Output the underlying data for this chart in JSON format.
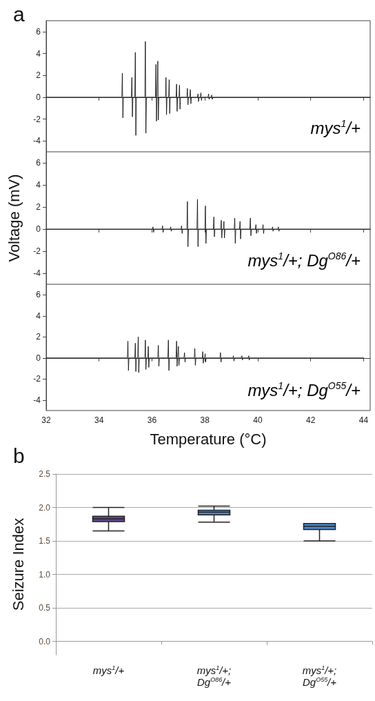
{
  "chart_data": [
    {
      "type": "line",
      "title": "a",
      "xlim": [
        32,
        44.25
      ],
      "xticks": [
        32,
        34,
        36,
        38,
        40,
        42,
        44
      ],
      "ylim": [
        -5,
        7
      ],
      "yticks": [
        -4,
        -2,
        0,
        2,
        4,
        6
      ],
      "tick_labels": "y",
      "marker": "none",
      "line_style": "solid",
      "annotations": [
        "mys$^{1}$/+"
      ],
      "series": [
        {
          "color": "#000000",
          "x": [
            32,
            34.86,
            34.88,
            34.9,
            34.92,
            35.22,
            35.24,
            35.26,
            35.28,
            35.35,
            35.37,
            35.39,
            35.41,
            35.73,
            35.75,
            35.77,
            35.79,
            36.13,
            36.15,
            36.17,
            36.19,
            36.2,
            36.22,
            36.24,
            36.26,
            36.51,
            36.53,
            36.55,
            36.57,
            36.63,
            36.65,
            36.67,
            36.69,
            36.91,
            36.93,
            36.95,
            36.97,
            37.02,
            37.04,
            37.06,
            37.08,
            37.32,
            37.34,
            37.36,
            37.38,
            37.43,
            37.45,
            37.47,
            37.49,
            37.72,
            37.74,
            37.76,
            37.78,
            37.83,
            37.85,
            37.87,
            37.89,
            38.12,
            38.14,
            38.16,
            38.18,
            38.24,
            38.26,
            38.28,
            38.3,
            44.25
          ],
          "values": [
            0,
            0,
            2.2,
            -1.9,
            0,
            0,
            1.8,
            -1.8,
            0,
            0,
            4.1,
            -3.5,
            0,
            0,
            5.1,
            -3.3,
            0,
            0,
            3.0,
            -2.2,
            0,
            0,
            3.3,
            -2.1,
            0,
            0,
            1.8,
            -1.6,
            0,
            0,
            1.6,
            -1.5,
            0,
            0,
            1.2,
            -1.3,
            0,
            0,
            1.1,
            -1.1,
            0,
            0,
            0.8,
            -0.7,
            0,
            0,
            0.7,
            -0.6,
            0,
            0,
            0.3,
            -0.4,
            0,
            0,
            0.4,
            -0.3,
            0,
            0,
            0.3,
            -0.2,
            0,
            0,
            0.2,
            -0.2,
            0,
            0
          ]
        }
      ]
    },
    {
      "type": "line",
      "ylabel": "Voltage (mV)",
      "xlim": [
        32,
        44.25
      ],
      "xticks": [
        32,
        34,
        36,
        38,
        40,
        42,
        44
      ],
      "ylim": [
        -5,
        7
      ],
      "yticks": [
        -4,
        -2,
        0,
        2,
        4,
        6
      ],
      "tick_labels": "y",
      "marker": "none",
      "line_style": "solid",
      "annotations": [
        "mys$^{1}$/+; Dg$^{O86}$/+"
      ],
      "series": [
        {
          "color": "#000000",
          "x": [
            32,
            36.02,
            36.04,
            36.06,
            36.08,
            36.38,
            36.4,
            36.42,
            36.44,
            36.69,
            36.71,
            36.73,
            36.75,
            37.1,
            37.12,
            37.14,
            37.16,
            37.32,
            37.34,
            37.36,
            37.38,
            37.7,
            37.72,
            37.74,
            37.76,
            38,
            38.02,
            38.04,
            38.06,
            38.32,
            38.34,
            38.36,
            38.38,
            38.6,
            38.62,
            38.64,
            38.66,
            38.7,
            38.72,
            38.74,
            38.76,
            39.11,
            39.13,
            39.15,
            39.17,
            39.31,
            39.33,
            39.35,
            39.37,
            39.7,
            39.72,
            39.74,
            39.76,
            39.91,
            39.93,
            39.95,
            39.97,
            40.18,
            40.2,
            40.22,
            40.24,
            40.54,
            40.56,
            40.58,
            40.6,
            40.76,
            40.78,
            40.8,
            40.82,
            44.25
          ],
          "values": [
            0,
            0,
            0.2,
            -0.3,
            0,
            0,
            0.3,
            -0.3,
            0,
            0,
            0.2,
            -0.2,
            0,
            0,
            0.3,
            -0.4,
            0,
            0,
            2.5,
            -1.6,
            0,
            0,
            2.7,
            -1.6,
            0,
            0,
            2.1,
            -1.3,
            0,
            0,
            1.1,
            -0.7,
            0,
            0,
            0.8,
            -0.8,
            0,
            0,
            0.7,
            -0.8,
            0,
            0,
            1.0,
            -1.3,
            0,
            0,
            0.7,
            -0.9,
            0,
            0,
            1.0,
            -0.6,
            0,
            0,
            0.4,
            -0.4,
            0,
            0,
            0.4,
            -0.4,
            0,
            0,
            0.2,
            -0.2,
            0,
            0,
            0.2,
            -0.2,
            0,
            0
          ]
        }
      ]
    },
    {
      "type": "line",
      "xlabel": "Temperature (°C)",
      "xlim": [
        32,
        44.25
      ],
      "xticks": [
        32,
        34,
        36,
        38,
        40,
        42,
        44
      ],
      "ylim": [
        -5,
        7
      ],
      "yticks": [
        -4,
        -2,
        0,
        2,
        4,
        6
      ],
      "marker": "none",
      "line_style": "solid",
      "annotations": [
        "mys$^{1}$/+; Dg$^{O55}$/+"
      ],
      "series": [
        {
          "color": "#000000",
          "x": [
            32,
            35.07,
            35.09,
            35.11,
            35.13,
            35.35,
            35.37,
            35.39,
            35.41,
            35.46,
            35.48,
            35.5,
            35.52,
            35.73,
            35.75,
            35.77,
            35.79,
            35.84,
            35.86,
            35.88,
            35.9,
            36.22,
            36.24,
            36.26,
            36.28,
            36.6,
            36.62,
            36.64,
            36.66,
            36.91,
            36.93,
            36.95,
            36.97,
            36.98,
            37,
            37.02,
            37.04,
            37.21,
            37.23,
            37.25,
            37.27,
            37.6,
            37.62,
            37.64,
            37.66,
            37.9,
            37.92,
            37.94,
            37.96,
            37.99,
            38.01,
            38.03,
            38.05,
            38.57,
            38.59,
            38.61,
            38.63,
            39.06,
            39.08,
            39.1,
            39.12,
            39.38,
            39.4,
            39.42,
            39.44,
            39.64,
            39.66,
            39.68,
            39.7,
            44
          ],
          "values": [
            0,
            0,
            1.6,
            -1.2,
            0,
            0,
            1.4,
            -1.3,
            0,
            0,
            2.0,
            -1.4,
            0,
            0,
            1.7,
            -1.1,
            0,
            0,
            1.1,
            -0.9,
            0,
            0,
            1.2,
            -0.8,
            0,
            0,
            1.7,
            -1.2,
            0,
            0,
            1.6,
            -0.8,
            0,
            0,
            1.1,
            -0.7,
            0,
            0,
            0.5,
            -0.4,
            0,
            0,
            0.9,
            -0.7,
            0,
            0,
            0.6,
            -0.5,
            0,
            0,
            0.4,
            -0.4,
            0,
            0,
            0.5,
            -0.4,
            0,
            0,
            0.2,
            -0.3,
            0,
            0,
            0.2,
            -0.2,
            0,
            0,
            0.2,
            -0.2,
            0,
            0
          ]
        }
      ]
    },
    {
      "type": "box",
      "title": "b",
      "ylabel": "Seizure Index",
      "categories": [
        "mys$^{1}$/+",
        "mys$^{1}$/+;\nDg$^{O86}$/+",
        "mys$^{1}$/+;\nDg$^{O55}$/+"
      ],
      "ylim": [
        -0.2,
        2.5
      ],
      "yticks": [
        {
          "value": 0,
          "label": "0.0"
        },
        0.5,
        {
          "value": 1,
          "label": "1.0"
        },
        1.5,
        {
          "value": 2,
          "label": "2.0"
        },
        2.5
      ],
      "grid": "y",
      "colors": [
        "#5e4a8c",
        "#4a86cc",
        "#4a86cc"
      ],
      "boxes": [
        {
          "low": 1.65,
          "q1": 1.79,
          "median": 1.83,
          "q3": 1.87,
          "high": 2.0
        },
        {
          "low": 1.78,
          "q1": 1.89,
          "median": 1.93,
          "q3": 1.96,
          "high": 2.02
        },
        {
          "low": 1.5,
          "q1": 1.67,
          "median": 1.72,
          "q3": 1.76,
          "high": 1.76
        }
      ]
    }
  ]
}
